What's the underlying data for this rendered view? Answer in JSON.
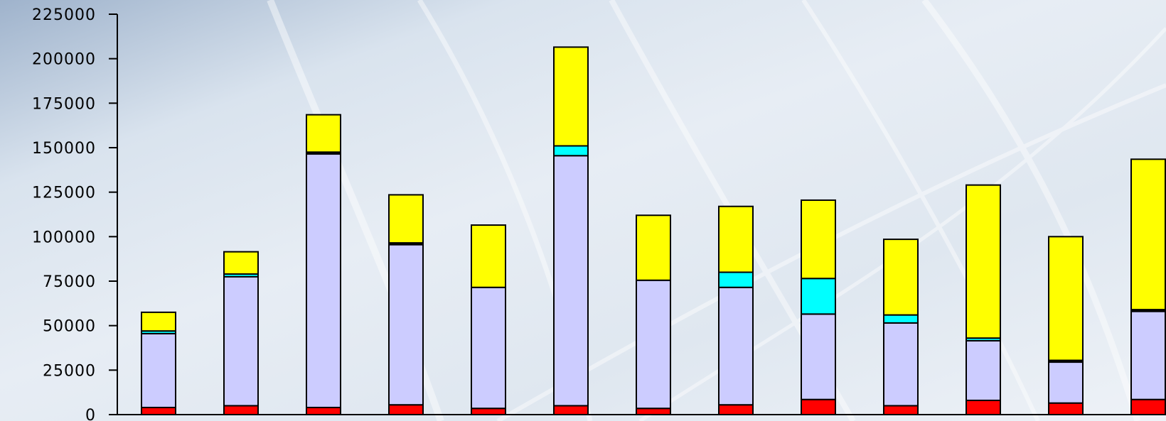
{
  "chart_data": {
    "type": "bar",
    "stacked": true,
    "title": "",
    "xlabel": "",
    "ylabel": "",
    "ylim": [
      0,
      225000
    ],
    "yticks": [
      0,
      25000,
      50000,
      75000,
      100000,
      125000,
      150000,
      175000,
      200000,
      225000
    ],
    "grid": false,
    "legend": "none",
    "categories_count": 13,
    "series": [
      {
        "color": "#ff0000",
        "values": [
          4000,
          5000,
          4000,
          5500,
          3500,
          5000,
          3500,
          5500,
          8500,
          5000,
          8000,
          6500,
          8500
        ]
      },
      {
        "color": "#ccccff",
        "values": [
          41500,
          72500,
          142500,
          90000,
          68000,
          140500,
          72000,
          66000,
          48000,
          46500,
          33500,
          23000,
          49500
        ]
      },
      {
        "color": "#00ffff",
        "values": [
          1500,
          1500,
          0,
          0,
          0,
          5500,
          0,
          8500,
          20000,
          4500,
          1500,
          0,
          0
        ]
      },
      {
        "color": "#000000",
        "values": [
          0,
          0,
          1000,
          1000,
          0,
          0,
          0,
          0,
          0,
          0,
          0,
          1000,
          1000
        ]
      },
      {
        "color": "#ffff00",
        "values": [
          10500,
          12500,
          21000,
          27000,
          35000,
          55500,
          36500,
          37000,
          44000,
          42500,
          86000,
          69500,
          84500
        ]
      }
    ]
  }
}
